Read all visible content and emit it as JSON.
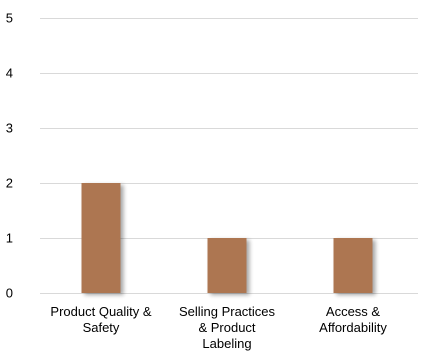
{
  "chart_data": {
    "type": "bar",
    "categories": [
      [
        "Product Quality &",
        "Safety"
      ],
      [
        "Selling Practices",
        "& Product",
        "Labeling"
      ],
      [
        "Access &",
        "Affordability"
      ]
    ],
    "values": [
      2,
      1,
      1
    ],
    "ylim": [
      0,
      5
    ],
    "yticks": [
      0,
      1,
      2,
      3,
      4,
      5
    ],
    "title": "",
    "xlabel": "",
    "ylabel": "",
    "grid": true,
    "colors": {
      "bar": "#ad7651",
      "bar_highlight": "#b98160",
      "grid": "#d9d9d9"
    }
  }
}
